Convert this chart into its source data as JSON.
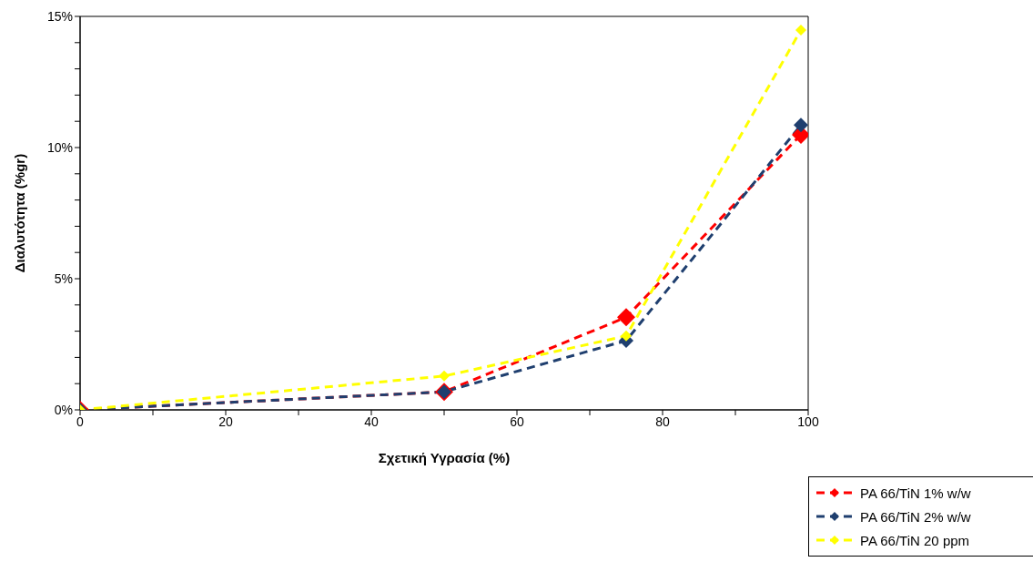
{
  "chart_data": {
    "type": "line",
    "xlabel": "Σχετική Υγρασία (%)",
    "ylabel": "Διαλυτότητα (%gr)",
    "x": [
      0,
      50,
      75,
      99
    ],
    "series": [
      {
        "name": "PA 66/TiN 1% w/w",
        "color": "#ff0000",
        "values": [
          0,
          0.69,
          3.53,
          10.49
        ]
      },
      {
        "name": "PA 66/TiN 2% w/w",
        "color": "#1f3f6f",
        "values": [
          0,
          0.69,
          2.64,
          10.86
        ]
      },
      {
        "name": "PA 66/TiN 20 ppm",
        "color": "#ffff00",
        "values": [
          0,
          1.29,
          2.82,
          14.48
        ]
      }
    ],
    "xlim": [
      0,
      100
    ],
    "xticks": [
      0,
      {
        "value": 10,
        "label": null
      },
      20,
      {
        "value": 30,
        "label": null
      },
      40,
      {
        "value": 50,
        "label": null
      },
      60,
      {
        "value": 70,
        "label": null
      },
      80,
      {
        "value": 90,
        "label": null
      },
      100
    ],
    "ylim": [
      0,
      15
    ],
    "yticks": [
      {
        "value": 0,
        "label": "0%"
      },
      {
        "value": 1,
        "label": null
      },
      {
        "value": 2,
        "label": null
      },
      {
        "value": 3,
        "label": null
      },
      {
        "value": 4,
        "label": null
      },
      {
        "value": 5,
        "label": "5%"
      },
      {
        "value": 6,
        "label": null
      },
      {
        "value": 7,
        "label": null
      },
      {
        "value": 8,
        "label": null
      },
      {
        "value": 9,
        "label": null
      },
      {
        "value": 10,
        "label": "10%"
      },
      {
        "value": 11,
        "label": null
      },
      {
        "value": 12,
        "label": null
      },
      {
        "value": 13,
        "label": null
      },
      {
        "value": 14,
        "label": null
      },
      {
        "value": 15,
        "label": "15%"
      }
    ],
    "grid": false,
    "legend": "bottom right",
    "marker": "diamond",
    "line_style": "dashed"
  }
}
